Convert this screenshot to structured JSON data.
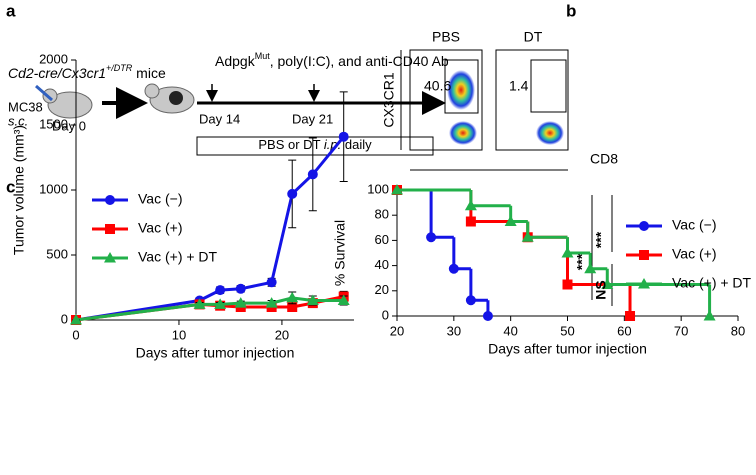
{
  "panel_labels": [
    "a",
    "b",
    "c"
  ],
  "panel_a": {
    "mice_label": {
      "prefix": "Cd2-cre/Cx3cr1",
      "superscript": "+/DTR",
      "suffix": " mice"
    },
    "tumor": "MC38",
    "route": "s.c.",
    "day0": "Day 0",
    "treatment": {
      "prefix": "Adpgk",
      "superscript": "Mut",
      "suffix": ", poly(I:C), and anti-CD40 Ab"
    },
    "day14": "Day 14",
    "day21": "Day 21",
    "daily": {
      "prefix": "PBS or DT ",
      "italic": "i.p.",
      "suffix": " daily"
    }
  },
  "panel_b": {
    "plots": [
      {
        "title": "PBS",
        "gate_value": "40.6"
      },
      {
        "title": "DT",
        "gate_value": "1.4"
      }
    ],
    "y_label": "CX3CR1",
    "x_label": "CD8"
  },
  "chart_data": [
    {
      "type": "line",
      "x_label": "Days after tumor injection",
      "y_label": "Tumor volume (mm³)",
      "x": [
        0,
        12,
        14,
        16,
        19,
        21,
        23,
        26
      ],
      "series": [
        {
          "name": "Vac (−)",
          "color": "#1414e6",
          "marker": "circle",
          "values": [
            0,
            150,
            230,
            240,
            290,
            970,
            1120,
            1410
          ],
          "errors": [
            0,
            20,
            25,
            25,
            30,
            260,
            280,
            345
          ]
        },
        {
          "name": "Vac (+)",
          "color": "#ff0000",
          "marker": "square",
          "values": [
            0,
            120,
            110,
            100,
            100,
            100,
            130,
            180
          ],
          "errors": [
            0,
            15,
            15,
            15,
            15,
            25,
            30,
            40
          ]
        },
        {
          "name": "Vac (+) + DT",
          "color": "#22b04a",
          "marker": "triangle",
          "values": [
            0,
            120,
            120,
            130,
            130,
            170,
            150,
            150
          ],
          "errors": [
            0,
            15,
            15,
            15,
            20,
            45,
            35,
            35
          ]
        }
      ],
      "xlim": [
        0,
        27
      ],
      "xticks": [
        0,
        10,
        20
      ],
      "ylim": [
        0,
        2000
      ],
      "yticks": [
        0,
        500,
        1000,
        1500,
        2000
      ],
      "legend": "upper left"
    },
    {
      "type": "step",
      "x_label": "Days after tumor injection",
      "y_label": "% Survival",
      "series": [
        {
          "name": "Vac (−)",
          "color": "#1414e6",
          "marker": "circle",
          "x": [
            20,
            26,
            30,
            33,
            36
          ],
          "values": [
            100,
            62.5,
            37.5,
            12.5,
            0
          ]
        },
        {
          "name": "Vac (+)",
          "color": "#ff0000",
          "marker": "square",
          "x": [
            20,
            33,
            43,
            50,
            61
          ],
          "values": [
            100,
            75,
            62.5,
            25,
            0
          ]
        },
        {
          "name": "Vac (+) + DT",
          "color": "#22b04a",
          "marker": "triangle",
          "x": [
            20,
            33,
            40,
            43,
            50,
            54,
            57,
            75
          ],
          "values": [
            100,
            87.5,
            75,
            62.5,
            50,
            37.5,
            25,
            0
          ]
        }
      ],
      "xlim": [
        20,
        80
      ],
      "xticks": [
        20,
        30,
        40,
        50,
        60,
        70,
        80
      ],
      "ylim": [
        0,
        100
      ],
      "yticks": [
        0,
        20,
        40,
        60,
        80,
        100
      ],
      "legend": "upper right",
      "annotations": [
        "***",
        "***",
        "NS"
      ]
    }
  ]
}
